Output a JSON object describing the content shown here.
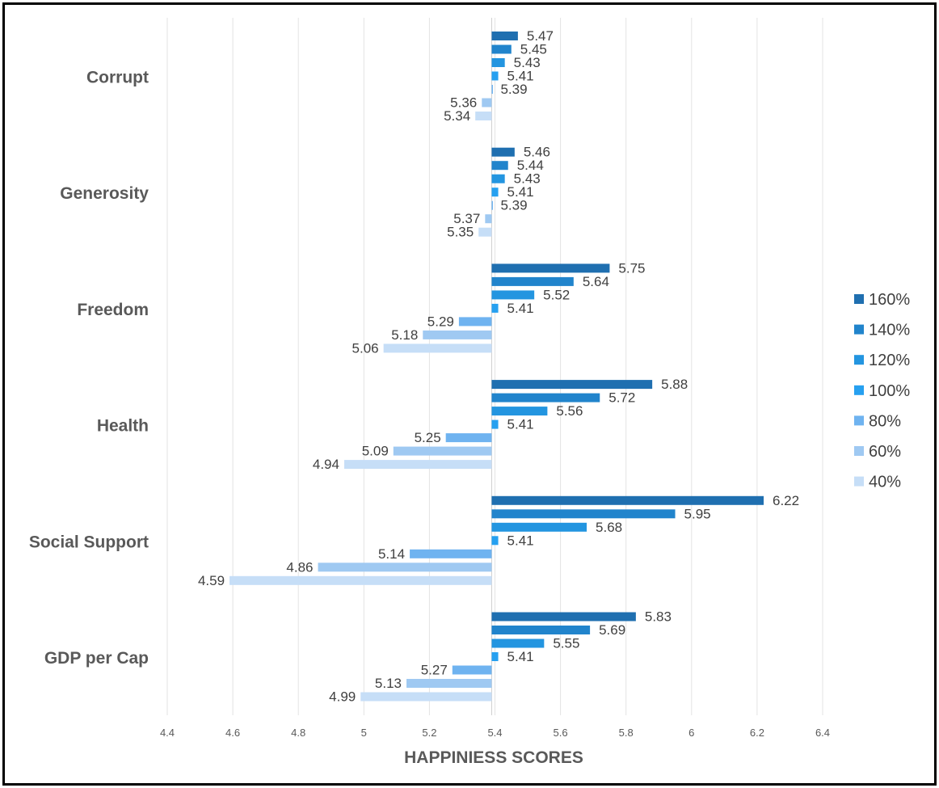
{
  "chart_data": {
    "type": "bar",
    "orientation": "horizontal",
    "categories": [
      "Corrupt",
      "Generosity",
      "Freedom",
      "Health",
      "Social Support",
      "GDP per Cap"
    ],
    "series": [
      {
        "name": "160%",
        "color": "#1f6fb0",
        "values": [
          5.47,
          5.46,
          5.75,
          5.88,
          6.22,
          5.83
        ]
      },
      {
        "name": "140%",
        "color": "#2184cc",
        "values": [
          5.45,
          5.44,
          5.64,
          5.72,
          5.95,
          5.69
        ]
      },
      {
        "name": "120%",
        "color": "#2395e0",
        "values": [
          5.43,
          5.43,
          5.52,
          5.56,
          5.68,
          5.55
        ]
      },
      {
        "name": "100%",
        "color": "#26a0f0",
        "values": [
          5.41,
          5.41,
          5.41,
          5.41,
          5.41,
          5.41
        ]
      },
      {
        "name": "80%",
        "color": "#6fb3f0",
        "values": [
          5.39,
          5.39,
          5.29,
          5.25,
          5.14,
          5.27
        ]
      },
      {
        "name": "60%",
        "color": "#9fc9f2",
        "values": [
          5.36,
          5.37,
          5.18,
          5.09,
          4.86,
          5.13
        ]
      },
      {
        "name": "40%",
        "color": "#c6def7",
        "values": [
          5.34,
          5.35,
          5.06,
          4.94,
          4.59,
          4.99
        ]
      }
    ],
    "baseline": 5.39,
    "xlim": [
      4.4,
      6.4
    ],
    "xticks": [
      "4.4",
      "4.6",
      "4.8",
      "5",
      "5.2",
      "5.4",
      "5.6",
      "5.8",
      "6",
      "6.2",
      "6.4"
    ],
    "xlabel": "HAPPINIESS SCORES",
    "ylabel": "",
    "grid": "vertical",
    "legend_position": "right"
  }
}
